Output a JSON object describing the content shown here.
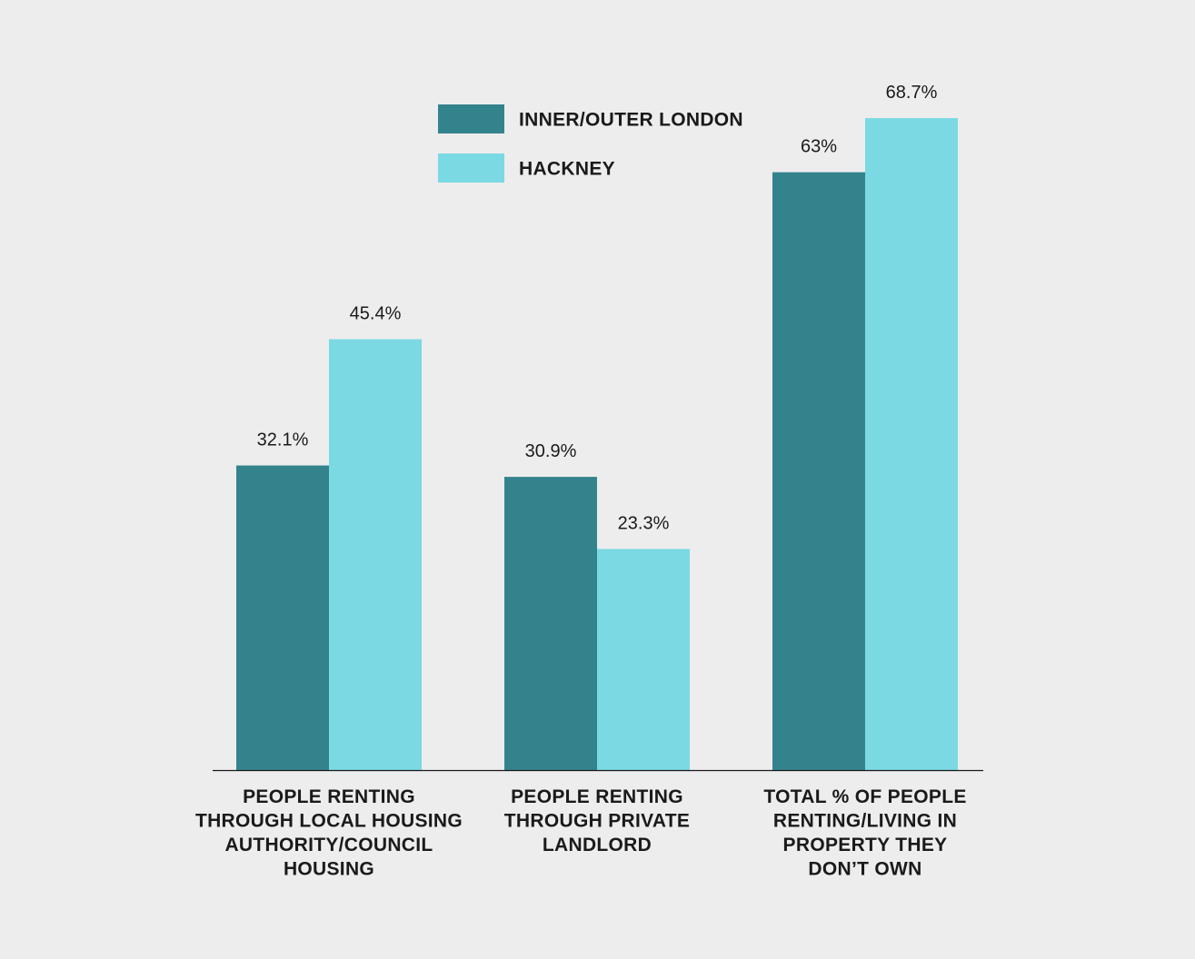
{
  "chart_data": {
    "type": "bar",
    "categories": [
      "PEOPLE RENTING THROUGH LOCAL HOUSING AUTHORITY/COUNCIL HOUSING",
      "PEOPLE RENTING THROUGH PRIVATE LANDLORD",
      "TOTAL % OF PEOPLE RENTING/LIVING IN PROPERTY THEY DON’T OWN"
    ],
    "category_lines": [
      [
        "PEOPLE RENTING",
        "THROUGH LOCAL HOUSING",
        "AUTHORITY/COUNCIL",
        "HOUSING"
      ],
      [
        "PEOPLE RENTING",
        "THROUGH PRIVATE",
        "LANDLORD"
      ],
      [
        "TOTAL % OF PEOPLE",
        "RENTING/LIVING IN",
        "PROPERTY THEY",
        "DON’T OWN"
      ]
    ],
    "series": [
      {
        "name": "INNER/OUTER LONDON",
        "color": "#33838d",
        "values": [
          32.1,
          30.9,
          63
        ],
        "labels": [
          "32.1%",
          "30.9%",
          "63%"
        ]
      },
      {
        "name": "HACKNEY",
        "color": "#7ad9e2",
        "values": [
          45.4,
          23.3,
          68.7
        ],
        "labels": [
          "45.4%",
          "23.3%",
          "68.7%"
        ]
      }
    ],
    "ylim": [
      0,
      100
    ],
    "legend_position": "top-center",
    "grid": false
  }
}
